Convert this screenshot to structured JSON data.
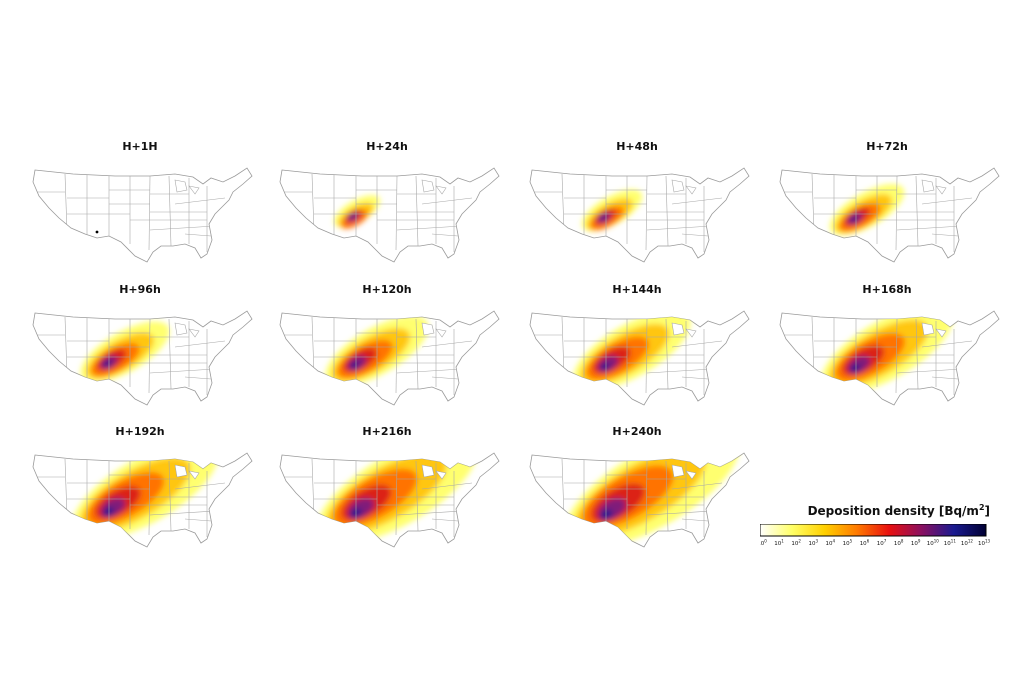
{
  "panels": [
    {
      "title": "H+1H",
      "level": 0
    },
    {
      "title": "H+24h",
      "level": 1
    },
    {
      "title": "H+48h",
      "level": 2
    },
    {
      "title": "H+72h",
      "level": 3
    },
    {
      "title": "H+96h",
      "level": 4
    },
    {
      "title": "H+120h",
      "level": 5
    },
    {
      "title": "H+144h",
      "level": 6
    },
    {
      "title": "H+168h",
      "level": 7
    },
    {
      "title": "H+192h",
      "level": 8
    },
    {
      "title": "H+216h",
      "level": 9
    },
    {
      "title": "H+240h",
      "level": 10
    }
  ],
  "legend": {
    "title_prefix": "Deposition density [Bq/m",
    "title_exp": "2",
    "title_suffix": "]",
    "tick_base": "10",
    "tick_exponents": [
      "0",
      "1",
      "2",
      "3",
      "4",
      "5",
      "6",
      "7",
      "8",
      "9",
      "10",
      "11",
      "12",
      "13"
    ],
    "colors": [
      "#ffffff",
      "#ffff66",
      "#ffd000",
      "#ff7a00",
      "#e81010",
      "#8a1060",
      "#1a1a90",
      "#000033"
    ]
  }
}
